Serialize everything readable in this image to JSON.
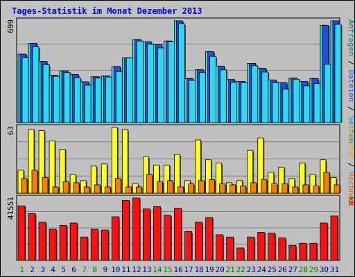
{
  "chart_data": {
    "type": "bar",
    "title": "Tages-Statistik im Monat Dezember 2013",
    "categories": [
      "1",
      "2",
      "3",
      "4",
      "5",
      "6",
      "7",
      "8",
      "9",
      "10",
      "11",
      "12",
      "13",
      "14",
      "15",
      "16",
      "17",
      "18",
      "19",
      "20",
      "21",
      "22",
      "23",
      "24",
      "25",
      "26",
      "27",
      "28",
      "29",
      "30",
      "31"
    ],
    "weekend_days": [
      7,
      8,
      14,
      15,
      21,
      22,
      28,
      29
    ],
    "panels": [
      {
        "axis_max_label": "699",
        "right_labels": [
          {
            "text": "Anfragen",
            "color": "#008080"
          },
          {
            "text": "Dateien",
            "color": "#3050e0"
          },
          {
            "text": "Seiten",
            "color": "#00a0c0"
          }
        ],
        "series": [
          {
            "name": "Anfragen",
            "color": "#30e0e0",
            "values": [
              470,
              545,
              420,
              325,
              355,
              330,
              280,
              315,
              320,
              385,
              445,
              570,
              555,
              535,
              560,
              699,
              303,
              363,
              487,
              387,
              296,
              283,
              407,
              373,
              293,
              273,
              305,
              282,
              303,
              669,
              699
            ]
          },
          {
            "name": "Dateien",
            "color": "#2050e0",
            "values": [
              470,
              545,
              420,
              325,
              355,
              330,
              280,
              315,
              320,
              385,
              445,
              570,
              555,
              535,
              560,
              699,
              303,
              363,
              487,
              387,
              296,
              283,
              407,
              373,
              293,
              273,
              305,
              282,
              303,
              669,
              699
            ]
          },
          {
            "name": "Seiten",
            "color": "#30d8f8",
            "values": [
              446,
              520,
              398,
              318,
              344,
              307,
              257,
              305,
              313,
              351,
              443,
              560,
              538,
              513,
              555,
              678,
              290,
              345,
              455,
              362,
              276,
              275,
              390,
              347,
              273,
              229,
              298,
              252,
              268,
              400,
              675
            ]
          }
        ]
      },
      {
        "axis_max_label": "63",
        "right_labels": [
          {
            "text": "Besuche",
            "color": "#d8b000"
          },
          {
            "text": "Rechner",
            "color": "#e07000"
          }
        ],
        "series": [
          {
            "name": "Besuche",
            "color": "#ffff20",
            "values": [
              22,
              61,
              60,
              50,
              42,
              18,
              12,
              26,
              28,
              63,
              61,
              9,
              35,
              27,
              27,
              37,
              12,
              51,
              32,
              29,
              10,
              12,
              41,
              53,
              20,
              25,
              14,
              29,
              18,
              32,
              15
            ]
          },
          {
            "name": "Rechner",
            "color": "#f88000",
            "values": [
              14,
              22,
              15,
              6,
              11,
              10,
              6,
              8,
              6,
              14,
              6,
              6,
              18,
              11,
              12,
              6,
              9,
              12,
              13,
              9,
              8,
              7,
              10,
              13,
              9,
              9,
              6,
              8,
              7,
              20,
              8
            ]
          }
        ]
      },
      {
        "axis_max_label": "41551",
        "right_labels": [
          {
            "text": "kB",
            "color": "#c00000"
          }
        ],
        "series": [
          {
            "name": "kB",
            "color": "#ff1010",
            "values": [
              35000,
              30000,
              24500,
              20000,
              22500,
              24000,
              15000,
              20000,
              19500,
              28000,
              38500,
              40000,
              33000,
              34500,
              29000,
              33500,
              18500,
              24500,
              27500,
              16500,
              15000,
              8000,
              15000,
              18000,
              17500,
              14500,
              9500,
              11000,
              11000,
              24000,
              28500
            ]
          }
        ]
      }
    ]
  }
}
